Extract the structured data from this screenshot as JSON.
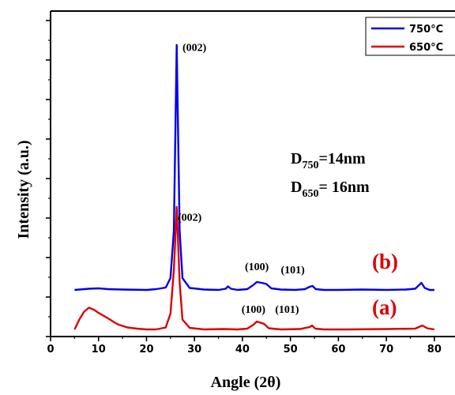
{
  "chart_data": {
    "type": "line",
    "xlabel": "Angle (2θ)",
    "ylabel": "Intensity (a.u.)",
    "xlim": [
      0,
      82
    ],
    "x_ticks": [
      "0",
      "10",
      "20",
      "30",
      "40",
      "50",
      "60",
      "70",
      "80"
    ],
    "grid": false,
    "legend_position": "top-right",
    "series": [
      {
        "name": "750°C",
        "color": "#0000ee",
        "x": [
          5,
          8,
          10,
          12,
          15,
          20,
          22,
          24,
          25,
          25.7,
          26.3,
          26.9,
          27.5,
          29,
          32,
          35,
          36.5,
          37,
          37.6,
          39,
          41,
          42.2,
          43,
          44,
          45,
          46,
          48,
          51,
          53,
          54,
          54.6,
          55.3,
          57,
          60,
          65,
          70,
          74,
          76,
          77.3,
          78,
          79,
          80
        ],
        "values": [
          0.0,
          0.03,
          0.04,
          0.02,
          0.01,
          0.0,
          0.02,
          0.06,
          0.3,
          1.5,
          6.2,
          1.5,
          0.3,
          0.05,
          0.01,
          0.0,
          0.03,
          0.09,
          0.03,
          0.0,
          0.02,
          0.12,
          0.2,
          0.18,
          0.15,
          0.04,
          0.01,
          0.0,
          0.02,
          0.08,
          0.1,
          0.02,
          0.0,
          0.0,
          0.01,
          0.0,
          0.01,
          0.03,
          0.18,
          0.05,
          0.0,
          0.0
        ]
      },
      {
        "name": "650°C",
        "color": "#dc0000",
        "x": [
          5,
          6,
          7,
          8,
          9,
          10,
          11,
          12,
          13,
          14,
          16,
          18,
          20,
          22,
          24,
          25,
          25.7,
          26.3,
          26.9,
          27.5,
          29,
          32,
          36,
          39,
          41,
          42.3,
          43,
          43.8,
          44.5,
          45.5,
          48,
          52,
          54,
          54.5,
          55.2,
          57,
          62,
          70,
          76,
          77.5,
          78.5,
          80
        ],
        "values": [
          0.0,
          0.25,
          0.45,
          0.55,
          0.5,
          0.42,
          0.35,
          0.28,
          0.2,
          0.13,
          0.05,
          0.02,
          0.0,
          0.0,
          0.05,
          0.4,
          1.5,
          3.1,
          1.2,
          0.25,
          0.04,
          0.0,
          0.01,
          0.0,
          0.02,
          0.12,
          0.2,
          0.17,
          0.14,
          0.03,
          0.0,
          0.01,
          0.06,
          0.1,
          0.02,
          0.0,
          0.0,
          0.01,
          0.02,
          0.1,
          0.03,
          0.0
        ]
      }
    ],
    "annotations": [
      {
        "text": "(002)",
        "x": 27.5,
        "series": 0,
        "y": 6.05
      },
      {
        "text": "(002)",
        "x": 26.5,
        "series": 1,
        "y": 2.75
      },
      {
        "text": "(100)",
        "x": 40.5,
        "series": 0,
        "y": 0.5
      },
      {
        "text": "(101)",
        "x": 48.0,
        "series": 0,
        "y": 0.42
      },
      {
        "text": "(100)",
        "x": 39.8,
        "series": 1,
        "y": 0.42
      },
      {
        "text": "(101)",
        "x": 46.8,
        "series": 1,
        "y": 0.42
      }
    ],
    "crystallite_sizes": [
      {
        "symbol": "D",
        "sub": "750",
        "value": "=14nm"
      },
      {
        "symbol": "D",
        "sub": "650",
        "value": "= 16nm"
      }
    ],
    "panel_labels": [
      "(b)",
      "(a)"
    ]
  }
}
